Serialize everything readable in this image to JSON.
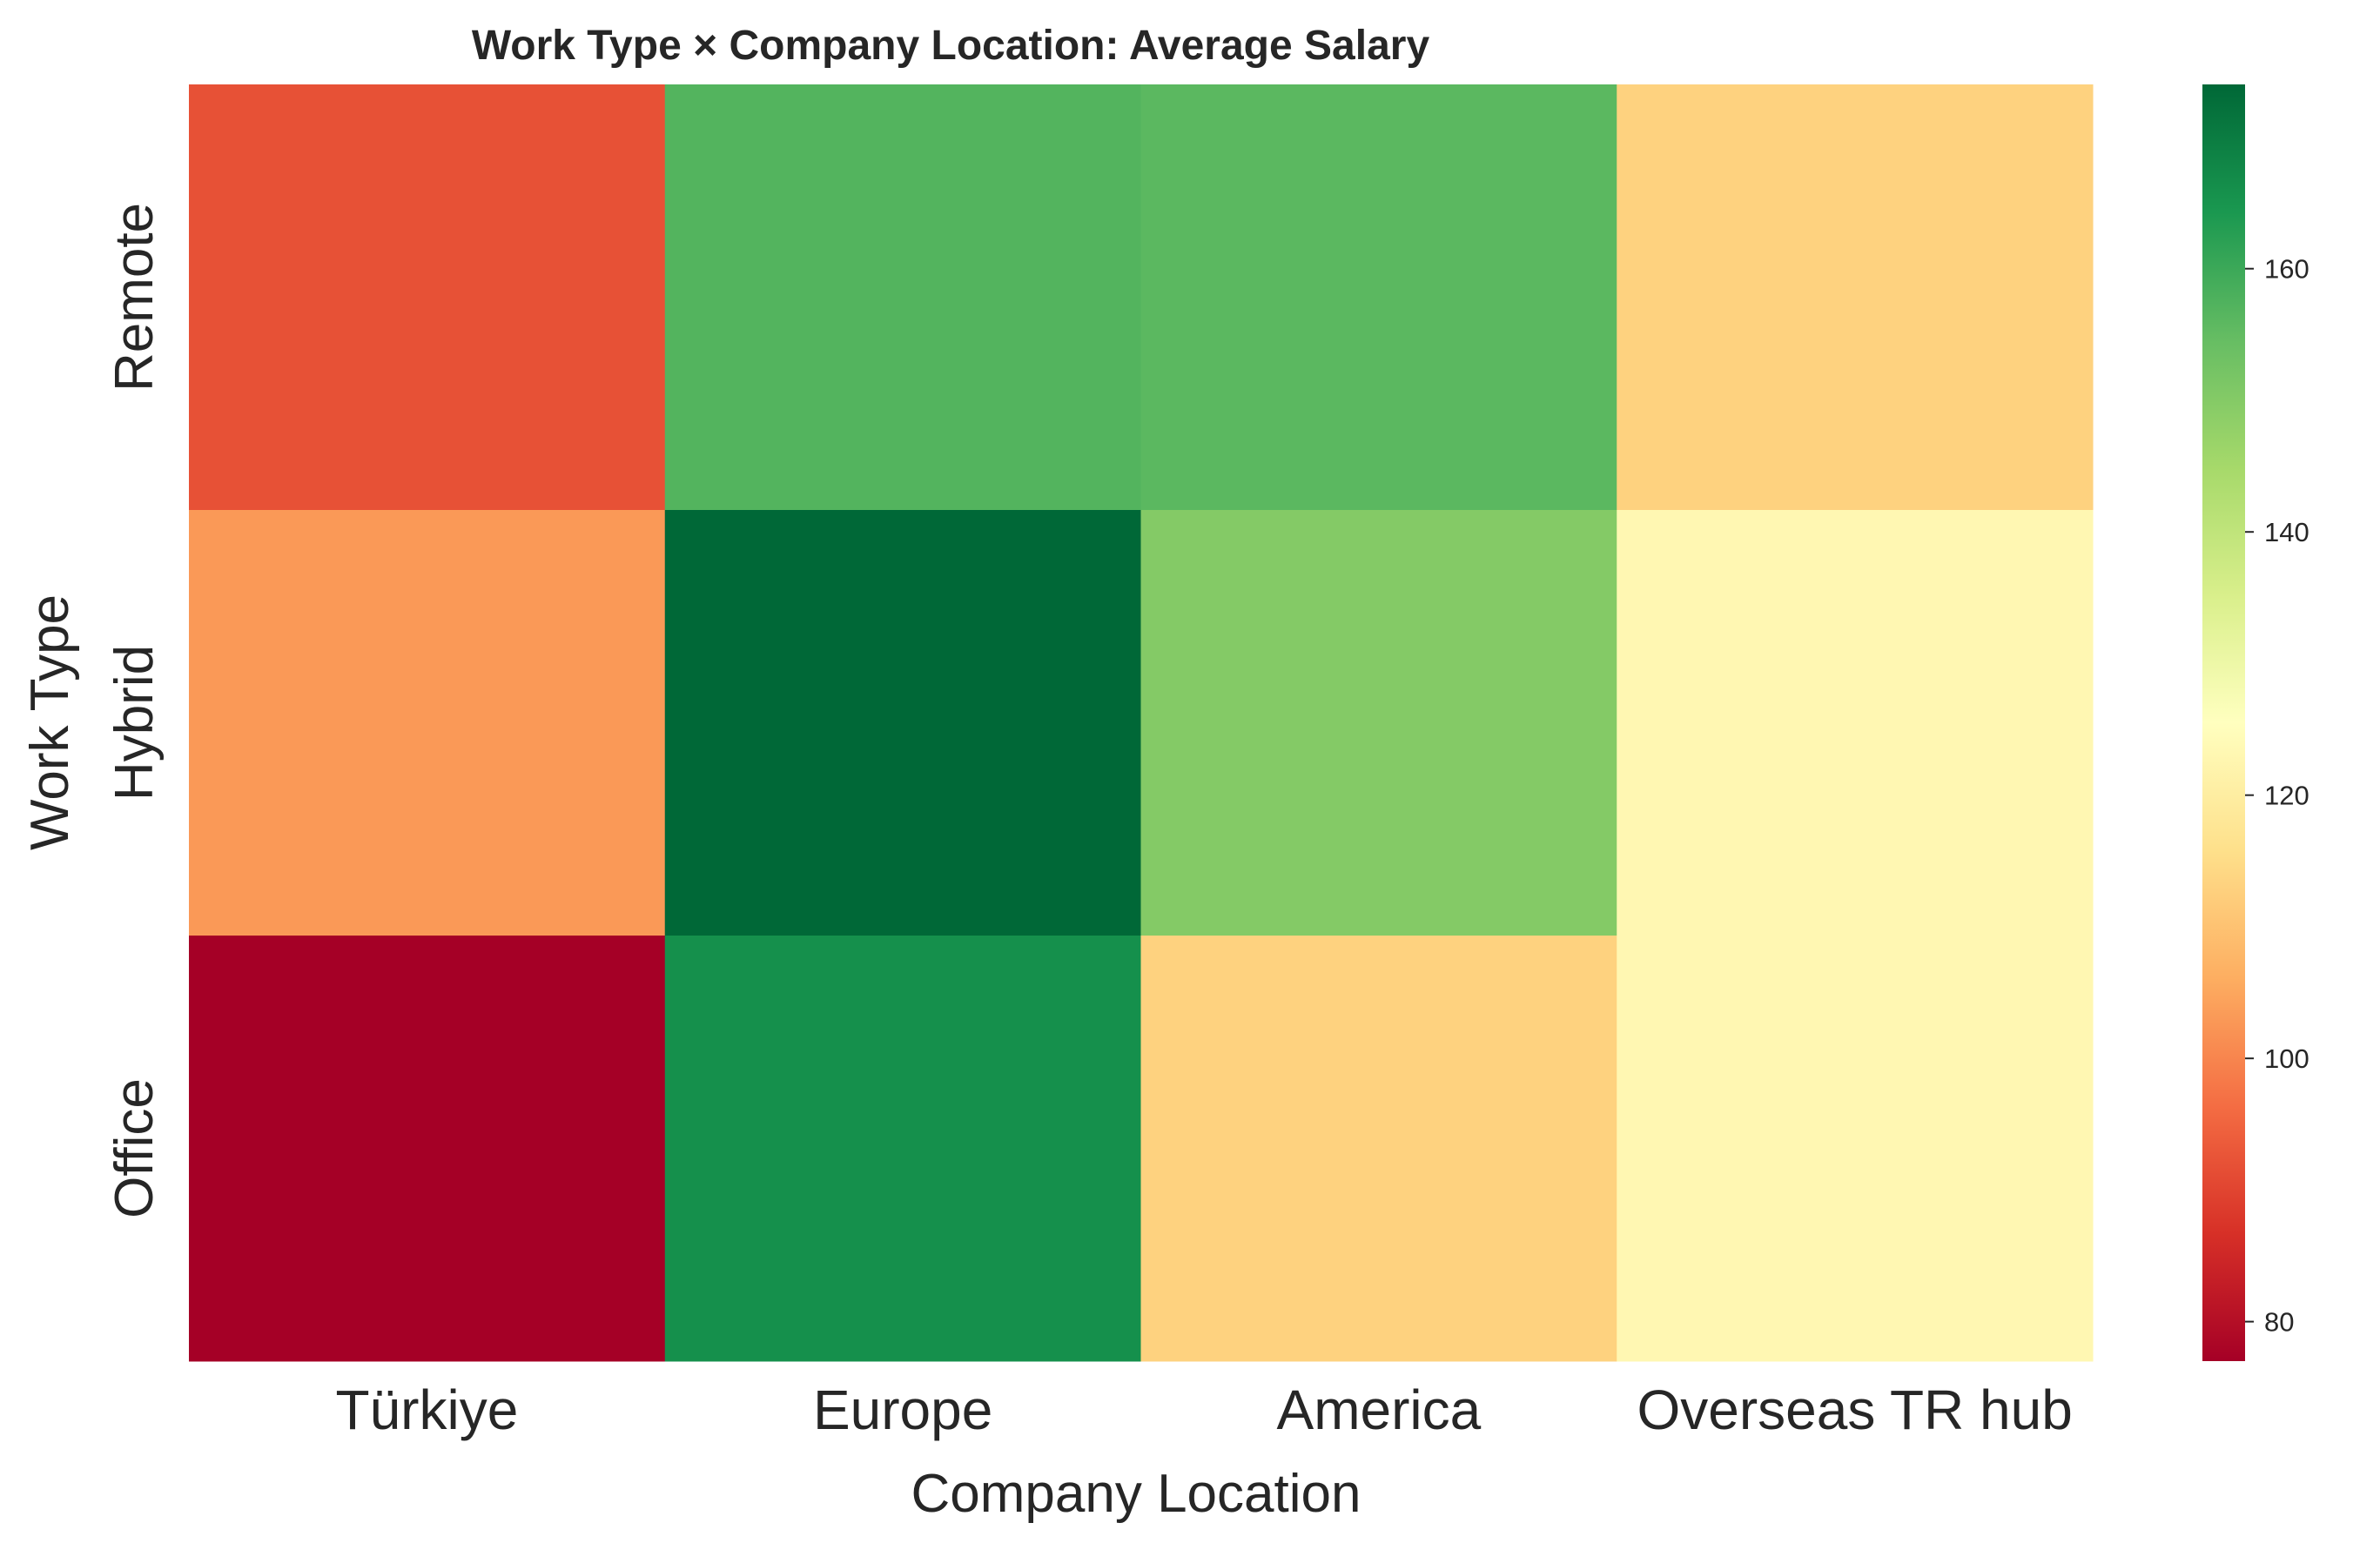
{
  "chart_data": {
    "type": "heatmap",
    "title": "Work Type × Company Location: Average Salary",
    "xlabel": "Company Location",
    "ylabel": "Work Type",
    "x_categories": [
      "Türkiye",
      "Europe",
      "America",
      "Overseas TR hub"
    ],
    "y_categories": [
      "Remote",
      "Hybrid",
      "Office"
    ],
    "values": [
      [
        92,
        157,
        156,
        113
      ],
      [
        103,
        174,
        150,
        123
      ],
      [
        77,
        166,
        113,
        123
      ]
    ],
    "colormap": "RdYlGn",
    "colorbar": {
      "min": 77,
      "max": 174,
      "ticks": [
        80,
        100,
        120,
        140,
        160
      ]
    },
    "grid": false,
    "colorbar_position": "right"
  }
}
